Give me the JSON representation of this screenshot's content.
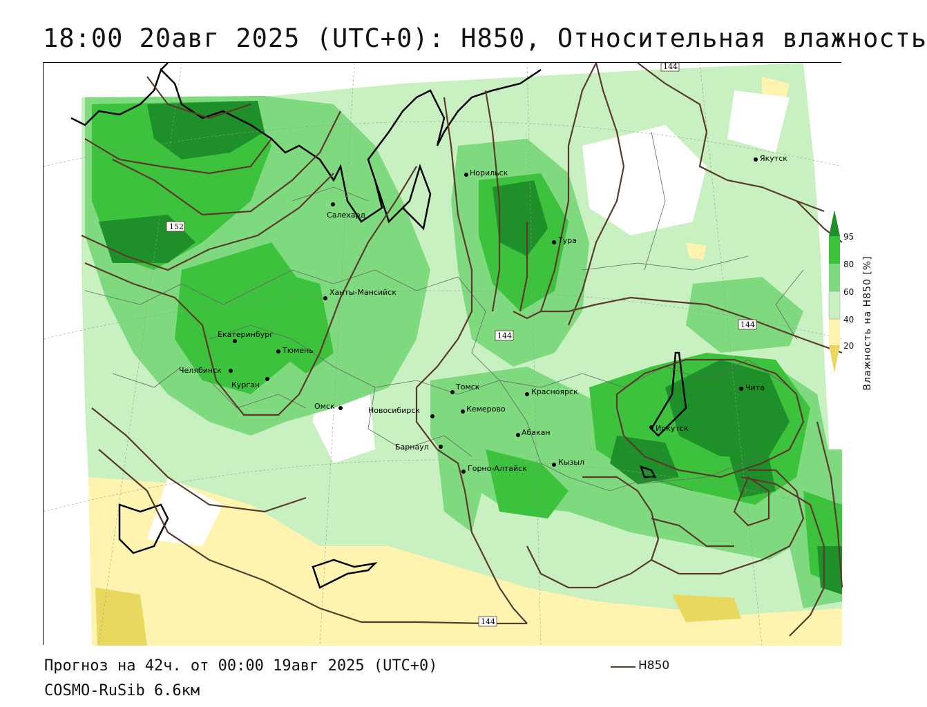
{
  "header": {
    "title": "18:00 20авг 2025 (UTC+0): H850, Относительная влажность"
  },
  "footer": {
    "forecast": "Прогноз на 42ч. от 00:00 19авг 2025 (UTC+0)",
    "model": "COSMO-RuSib 6.6км",
    "legend_line_label": "H850"
  },
  "colorbar": {
    "title": "Влажность на H850 [%]",
    "ticks": [
      "95",
      "80",
      "60",
      "40",
      "20"
    ],
    "colors": {
      "dark_green": "#1f8f2a",
      "green": "#3cc23c",
      "mid_green": "#7fd97f",
      "light_green": "#c8f0c0",
      "white": "#ffffff",
      "light_yellow": "#fff3b0",
      "yellow": "#e8d860"
    }
  },
  "map": {
    "contour_color": "#5a3a2a",
    "contour_labels": [
      "144",
      "152",
      "144",
      "144",
      "144"
    ],
    "cities": [
      {
        "name": "Якутск"
      },
      {
        "name": "Норильск"
      },
      {
        "name": "Салехард"
      },
      {
        "name": "Тура"
      },
      {
        "name": "Ханты-Мансийск"
      },
      {
        "name": "Екатеринбург"
      },
      {
        "name": "Тюмень"
      },
      {
        "name": "Челябинск"
      },
      {
        "name": "Курган"
      },
      {
        "name": "Омск"
      },
      {
        "name": "Томск"
      },
      {
        "name": "Красноярск"
      },
      {
        "name": "Новосибирск"
      },
      {
        "name": "Кемерово"
      },
      {
        "name": "Абакан"
      },
      {
        "name": "Барнаул"
      },
      {
        "name": "Горно-Алтайск"
      },
      {
        "name": "Кызыл"
      },
      {
        "name": "Иркутск"
      },
      {
        "name": "Чита"
      }
    ]
  }
}
